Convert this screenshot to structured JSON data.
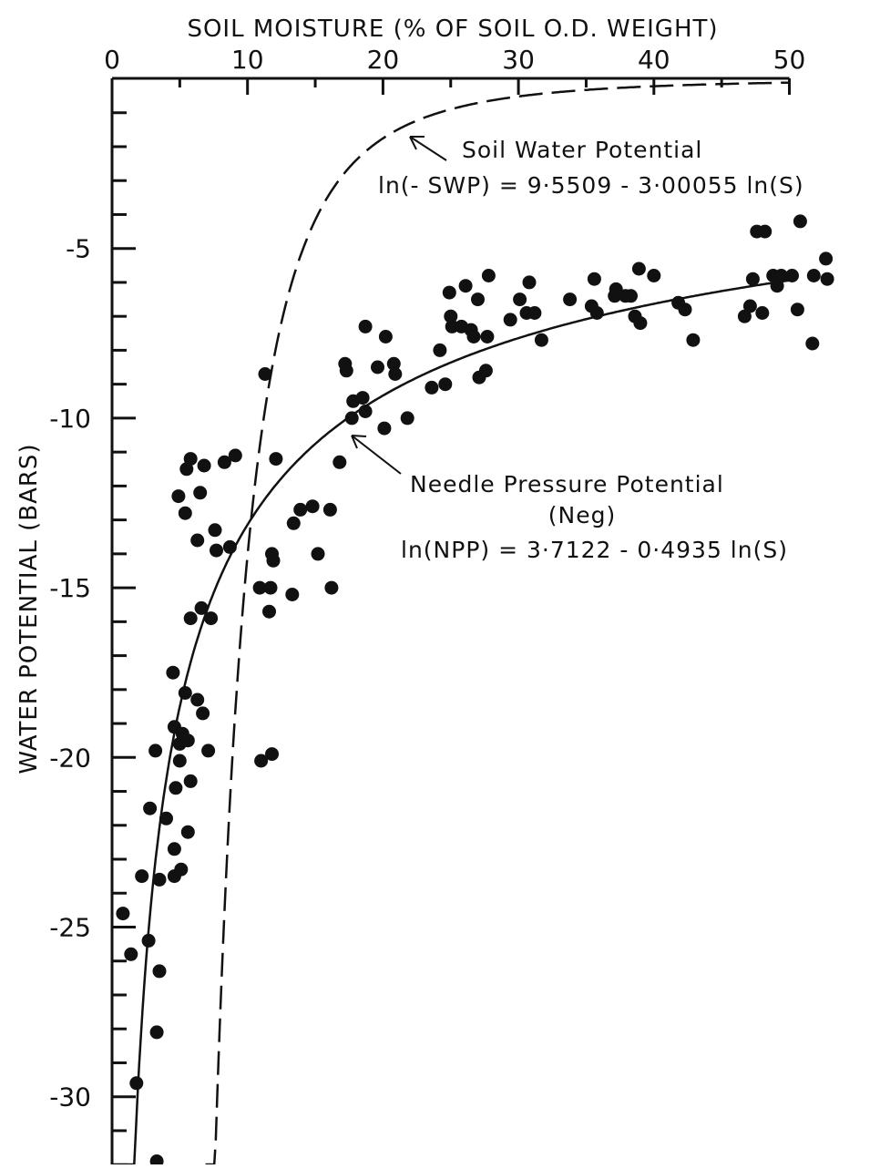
{
  "chart_data": {
    "type": "scatter",
    "xlabel": "SOIL  MOISTURE  (%  OF  SOIL  O.D.  WEIGHT)",
    "ylabel": "WATER  POTENTIAL (BARS)",
    "xlim": [
      0,
      50
    ],
    "ylim": [
      -32,
      0
    ],
    "x_ticks": [
      0,
      10,
      20,
      30,
      40,
      50
    ],
    "y_ticks": [
      -5,
      -10,
      -15,
      -20,
      -25,
      -30
    ],
    "x_axis_position": "top",
    "grid": false,
    "legend": "none",
    "annotations": [
      {
        "line1": "Soil  Water  Potential",
        "line2": "ln(- SWP)  = 9·5509  - 3·00055 ln(S)",
        "target": "swp_curve"
      },
      {
        "line1": "Needle  Pressure  Potential",
        "line2": "(Neg)",
        "line3": "ln(NPP) = 3·7122  - 0·4935  ln(S)",
        "target": "npp_curve"
      }
    ],
    "fits": {
      "needle_pressure_potential": {
        "a": 3.7122,
        "b": 0.4935,
        "style": "solid"
      },
      "soil_water_potential": {
        "a": 9.5509,
        "b": 3.00055,
        "style": "dashed"
      }
    },
    "series": [
      {
        "points": [
          [
            0.8,
            -24.6
          ],
          [
            1.4,
            -25.8
          ],
          [
            1.8,
            -29.6
          ],
          [
            2.2,
            -23.5
          ],
          [
            2.7,
            -25.4
          ],
          [
            2.8,
            -21.5
          ],
          [
            3.2,
            -19.8
          ],
          [
            3.3,
            -28.1
          ],
          [
            3.5,
            -23.6
          ],
          [
            3.5,
            -26.3
          ],
          [
            3.3,
            -31.9
          ],
          [
            4.0,
            -21.8
          ],
          [
            4.5,
            -17.5
          ],
          [
            4.6,
            -19.1
          ],
          [
            4.6,
            -22.7
          ],
          [
            4.6,
            -23.5
          ],
          [
            4.7,
            -20.9
          ],
          [
            4.9,
            -12.3
          ],
          [
            5.0,
            -19.6
          ],
          [
            5.0,
            -20.1
          ],
          [
            5.1,
            -23.3
          ],
          [
            5.2,
            -19.3
          ],
          [
            5.4,
            -18.1
          ],
          [
            5.4,
            -12.8
          ],
          [
            5.5,
            -11.5
          ],
          [
            5.6,
            -22.2
          ],
          [
            5.6,
            -19.5
          ],
          [
            5.8,
            -11.2
          ],
          [
            5.8,
            -15.9
          ],
          [
            5.8,
            -20.7
          ],
          [
            6.3,
            -13.6
          ],
          [
            6.3,
            -18.3
          ],
          [
            6.5,
            -12.2
          ],
          [
            6.6,
            -15.6
          ],
          [
            6.7,
            -18.7
          ],
          [
            6.8,
            -11.4
          ],
          [
            7.1,
            -19.8
          ],
          [
            7.3,
            -15.9
          ],
          [
            7.6,
            -13.3
          ],
          [
            7.7,
            -13.9
          ],
          [
            8.3,
            -11.3
          ],
          [
            8.7,
            -13.8
          ],
          [
            9.1,
            -11.1
          ],
          [
            10.9,
            -15.0
          ],
          [
            11.0,
            -20.1
          ],
          [
            11.3,
            -8.7
          ],
          [
            11.6,
            -15.7
          ],
          [
            11.7,
            -15.0
          ],
          [
            11.8,
            -19.9
          ],
          [
            11.8,
            -14.0
          ],
          [
            11.9,
            -14.2
          ],
          [
            12.1,
            -11.2
          ],
          [
            13.3,
            -15.2
          ],
          [
            13.4,
            -13.1
          ],
          [
            13.9,
            -12.7
          ],
          [
            14.8,
            -12.6
          ],
          [
            15.2,
            -14.0
          ],
          [
            16.1,
            -12.7
          ],
          [
            16.2,
            -15.0
          ],
          [
            16.8,
            -11.3
          ],
          [
            17.2,
            -8.4
          ],
          [
            17.3,
            -8.6
          ],
          [
            17.7,
            -10.0
          ],
          [
            17.8,
            -9.5
          ],
          [
            18.5,
            -9.4
          ],
          [
            18.7,
            -9.8
          ],
          [
            18.7,
            -7.3
          ],
          [
            19.6,
            -8.5
          ],
          [
            20.1,
            -10.3
          ],
          [
            20.2,
            -7.6
          ],
          [
            20.8,
            -8.4
          ],
          [
            20.9,
            -8.7
          ],
          [
            21.8,
            -10.0
          ],
          [
            23.6,
            -9.1
          ],
          [
            24.2,
            -8.0
          ],
          [
            24.6,
            -9.0
          ],
          [
            24.9,
            -6.3
          ],
          [
            25.0,
            -7.0
          ],
          [
            25.1,
            -7.3
          ],
          [
            25.8,
            -7.3
          ],
          [
            26.1,
            -6.1
          ],
          [
            26.5,
            -7.4
          ],
          [
            26.7,
            -7.6
          ],
          [
            27.0,
            -6.5
          ],
          [
            27.1,
            -8.8
          ],
          [
            27.6,
            -8.6
          ],
          [
            27.7,
            -7.6
          ],
          [
            27.8,
            -5.8
          ],
          [
            29.4,
            -7.1
          ],
          [
            30.1,
            -6.5
          ],
          [
            30.6,
            -6.9
          ],
          [
            30.8,
            -6.0
          ],
          [
            31.2,
            -6.9
          ],
          [
            31.7,
            -7.7
          ],
          [
            33.8,
            -6.5
          ],
          [
            35.4,
            -6.7
          ],
          [
            35.6,
            -5.9
          ],
          [
            35.8,
            -6.9
          ],
          [
            37.1,
            -6.4
          ],
          [
            37.2,
            -6.2
          ],
          [
            37.9,
            -6.4
          ],
          [
            38.3,
            -6.4
          ],
          [
            38.6,
            -7.0
          ],
          [
            38.9,
            -5.6
          ],
          [
            39.0,
            -7.2
          ],
          [
            40.0,
            -5.8
          ],
          [
            41.8,
            -6.6
          ],
          [
            42.3,
            -6.8
          ],
          [
            42.9,
            -7.7
          ],
          [
            46.7,
            -7.0
          ],
          [
            47.1,
            -6.7
          ],
          [
            47.3,
            -5.9
          ],
          [
            47.6,
            -4.5
          ],
          [
            48.0,
            -6.9
          ],
          [
            48.2,
            -4.5
          ],
          [
            48.8,
            -5.8
          ],
          [
            49.1,
            -6.1
          ],
          [
            49.4,
            -5.8
          ],
          [
            50.2,
            -5.8
          ],
          [
            50.6,
            -6.8
          ],
          [
            50.8,
            -4.2
          ],
          [
            51.7,
            -7.8
          ],
          [
            51.8,
            -5.8
          ],
          [
            52.7,
            -5.3
          ],
          [
            52.8,
            -5.9
          ]
        ]
      }
    ]
  }
}
